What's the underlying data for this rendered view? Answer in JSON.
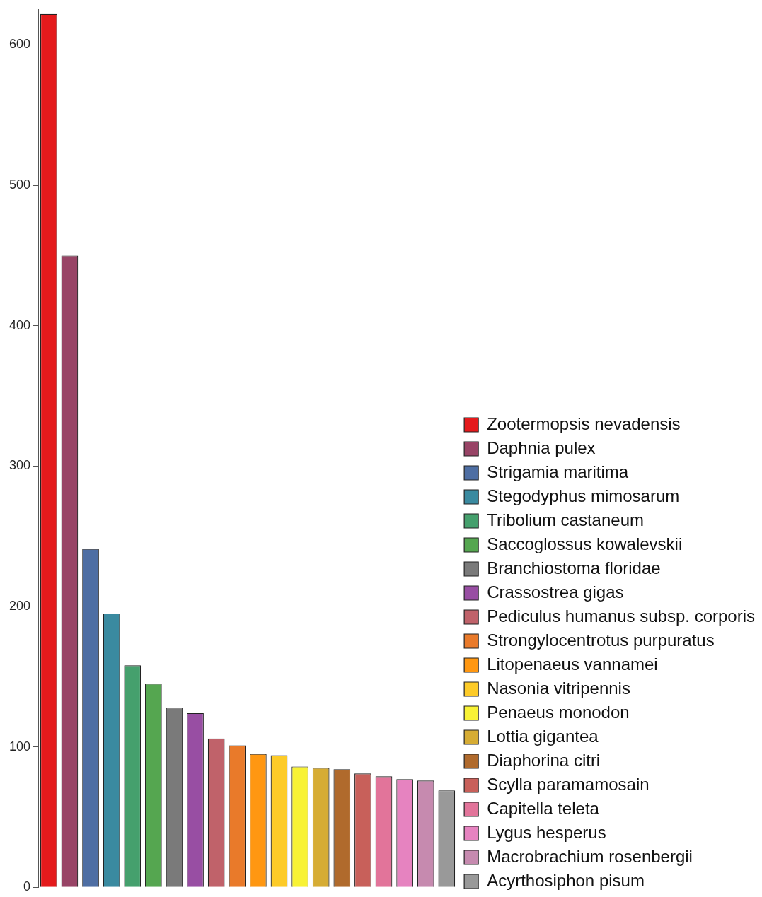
{
  "chart_data": {
    "type": "bar",
    "stacked": true,
    "categories": [
      null,
      null,
      null,
      null,
      null,
      null,
      null,
      null,
      null,
      null,
      null,
      null,
      null,
      null,
      null,
      null,
      null,
      null,
      null,
      null
    ],
    "series": [
      {
        "name": "Zootermopsis nevadensis",
        "color": "#e41a1c",
        "values": [
          622,
          null,
          null,
          null,
          null,
          null,
          null,
          null,
          null,
          null,
          null,
          null,
          null,
          null,
          null,
          null,
          null,
          null,
          null,
          null
        ]
      },
      {
        "name": "Daphnia pulex",
        "color": "#984466",
        "values": [
          null,
          450,
          null,
          null,
          null,
          null,
          null,
          null,
          null,
          null,
          null,
          null,
          null,
          null,
          null,
          null,
          null,
          null,
          null,
          null
        ]
      },
      {
        "name": "Strigamia maritima",
        "color": "#4e6ea3",
        "values": [
          null,
          null,
          241,
          null,
          null,
          null,
          null,
          null,
          null,
          null,
          null,
          null,
          null,
          null,
          null,
          null,
          null,
          null,
          null,
          null
        ]
      },
      {
        "name": "Stegodyphus mimosarum",
        "color": "#3a8aa0",
        "values": [
          null,
          null,
          null,
          195,
          null,
          null,
          null,
          null,
          null,
          null,
          null,
          null,
          null,
          null,
          null,
          null,
          null,
          null,
          null,
          null
        ]
      },
      {
        "name": "Tribolium castaneum",
        "color": "#45a06d",
        "values": [
          null,
          null,
          null,
          null,
          158,
          null,
          null,
          null,
          null,
          null,
          null,
          null,
          null,
          null,
          null,
          null,
          null,
          null,
          null,
          null
        ]
      },
      {
        "name": "Saccoglossus kowalevskii",
        "color": "#55a650",
        "values": [
          null,
          null,
          null,
          null,
          null,
          145,
          null,
          null,
          null,
          null,
          null,
          null,
          null,
          null,
          null,
          null,
          null,
          null,
          null,
          null
        ]
      },
      {
        "name": "Branchiostoma floridae",
        "color": "#7a7a7a",
        "values": [
          null,
          null,
          null,
          null,
          null,
          null,
          128,
          null,
          null,
          null,
          null,
          null,
          null,
          null,
          null,
          null,
          null,
          null,
          null,
          null
        ]
      },
      {
        "name": "Crassostrea gigas",
        "color": "#984ea3",
        "values": [
          null,
          null,
          null,
          null,
          null,
          null,
          null,
          124,
          null,
          null,
          null,
          null,
          null,
          null,
          null,
          null,
          null,
          null,
          null,
          null
        ]
      },
      {
        "name": "Pediculus humanus subsp. corporis",
        "color": "#c0626a",
        "values": [
          null,
          null,
          null,
          null,
          null,
          null,
          null,
          null,
          106,
          null,
          null,
          null,
          null,
          null,
          null,
          null,
          null,
          null,
          null,
          null
        ]
      },
      {
        "name": "Strongylocentrotus purpuratus",
        "color": "#e97a2a",
        "values": [
          null,
          null,
          null,
          null,
          null,
          null,
          null,
          null,
          null,
          101,
          null,
          null,
          null,
          null,
          null,
          null,
          null,
          null,
          null,
          null
        ]
      },
      {
        "name": "Litopenaeus vannamei",
        "color": "#ff9711",
        "values": [
          null,
          null,
          null,
          null,
          null,
          null,
          null,
          null,
          null,
          null,
          95,
          null,
          null,
          null,
          null,
          null,
          null,
          null,
          null,
          null
        ]
      },
      {
        "name": "Nasonia vitripennis",
        "color": "#fdcb28",
        "values": [
          null,
          null,
          null,
          null,
          null,
          null,
          null,
          null,
          null,
          null,
          null,
          94,
          null,
          null,
          null,
          null,
          null,
          null,
          null,
          null
        ]
      },
      {
        "name": "Penaeus monodon",
        "color": "#f8f235",
        "values": [
          null,
          null,
          null,
          null,
          null,
          null,
          null,
          null,
          null,
          null,
          null,
          null,
          86,
          null,
          null,
          null,
          null,
          null,
          null,
          null
        ]
      },
      {
        "name": "Lottia gigantea",
        "color": "#d6ac34",
        "values": [
          null,
          null,
          null,
          null,
          null,
          null,
          null,
          null,
          null,
          null,
          null,
          null,
          null,
          85,
          null,
          null,
          null,
          null,
          null,
          null
        ]
      },
      {
        "name": "Diaphorina citri",
        "color": "#b06a2c",
        "values": [
          null,
          null,
          null,
          null,
          null,
          null,
          null,
          null,
          null,
          null,
          null,
          null,
          null,
          null,
          84,
          null,
          null,
          null,
          null,
          null
        ]
      },
      {
        "name": "Scylla paramamosain",
        "color": "#c8605a",
        "values": [
          null,
          null,
          null,
          null,
          null,
          null,
          null,
          null,
          null,
          null,
          null,
          null,
          null,
          null,
          null,
          81,
          null,
          null,
          null,
          null
        ]
      },
      {
        "name": "Capitella teleta",
        "color": "#e2749a",
        "values": [
          null,
          null,
          null,
          null,
          null,
          null,
          null,
          null,
          null,
          null,
          null,
          null,
          null,
          null,
          null,
          null,
          79,
          null,
          null,
          null
        ]
      },
      {
        "name": "Lygus hesperus",
        "color": "#e683c0",
        "values": [
          null,
          null,
          null,
          null,
          null,
          null,
          null,
          null,
          null,
          null,
          null,
          null,
          null,
          null,
          null,
          null,
          null,
          77,
          null,
          null
        ]
      },
      {
        "name": "Macrobrachium rosenbergii",
        "color": "#c68aaf",
        "values": [
          null,
          null,
          null,
          null,
          null,
          null,
          null,
          null,
          null,
          null,
          null,
          null,
          null,
          null,
          null,
          null,
          null,
          null,
          76,
          null
        ]
      },
      {
        "name": "Acyrthosiphon pisum",
        "color": "#999999",
        "values": [
          null,
          null,
          null,
          null,
          null,
          null,
          null,
          null,
          null,
          null,
          null,
          null,
          null,
          null,
          null,
          null,
          null,
          null,
          null,
          69
        ]
      }
    ],
    "ylim": [
      0,
      625
    ],
    "yticks": [
      0,
      100,
      200,
      300,
      400,
      500,
      600
    ],
    "grid": false,
    "legend": "bottom right",
    "tick_labels": "y"
  }
}
